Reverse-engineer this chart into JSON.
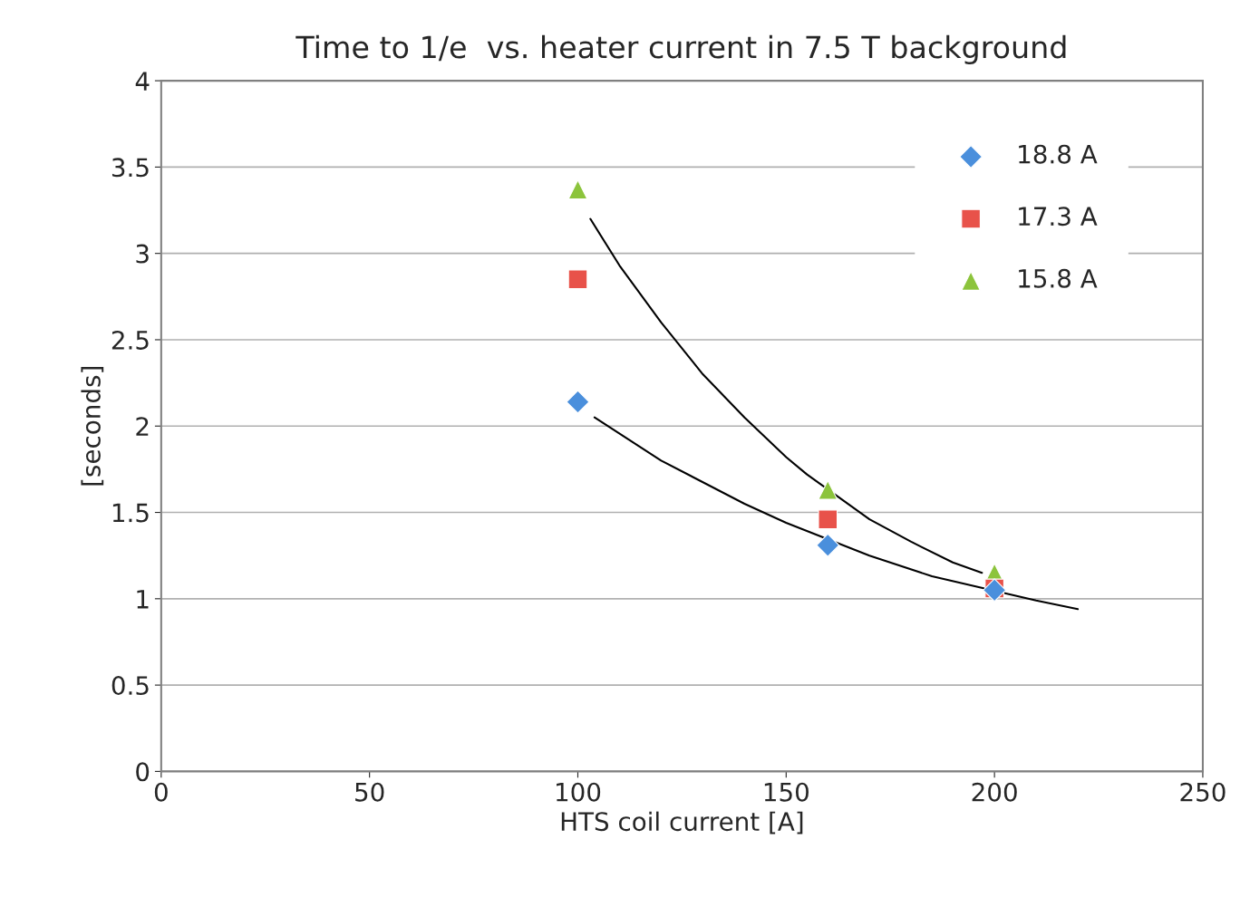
{
  "chart_data": {
    "type": "scatter",
    "title": "Time to 1/e  vs. heater current in 7.5 T background",
    "xlabel": "HTS coil current [A]",
    "ylabel": "[seconds]",
    "series": [
      {
        "name": "18.8 A",
        "color": "#4a8fdc",
        "marker": "diamond",
        "x": [
          100,
          160,
          200
        ],
        "values": [
          2.14,
          1.31,
          1.05
        ]
      },
      {
        "name": "17.3 A",
        "color": "#e8524a",
        "marker": "square",
        "x": [
          100,
          160,
          200
        ],
        "values": [
          2.85,
          1.46,
          1.06
        ]
      },
      {
        "name": "15.8 A",
        "color": "#8cc43c",
        "marker": "triangle",
        "x": [
          100,
          160,
          200
        ],
        "values": [
          3.37,
          1.63,
          1.15
        ]
      },
      {
        "type": "line",
        "color": "#000000",
        "marker": "none",
        "x": [
          104,
          120,
          140,
          150,
          170,
          185,
          210,
          220
        ],
        "values": [
          2.05,
          1.8,
          1.55,
          1.44,
          1.25,
          1.13,
          0.99,
          0.94
        ]
      },
      {
        "type": "line",
        "color": "#000000",
        "marker": "none",
        "x": [
          103,
          110,
          120,
          130,
          140,
          150,
          155,
          170,
          180,
          190,
          197
        ],
        "values": [
          3.2,
          2.93,
          2.6,
          2.3,
          2.05,
          1.82,
          1.72,
          1.46,
          1.33,
          1.21,
          1.15
        ]
      }
    ],
    "xlim": [
      0,
      250
    ],
    "xticks": [
      0,
      50,
      100,
      150,
      200,
      250
    ],
    "ylim": [
      0,
      4
    ],
    "yticks": [
      0,
      0.5,
      1,
      1.5,
      2,
      2.5,
      3,
      3.5,
      4
    ],
    "grid": "y",
    "legend": "top right"
  }
}
